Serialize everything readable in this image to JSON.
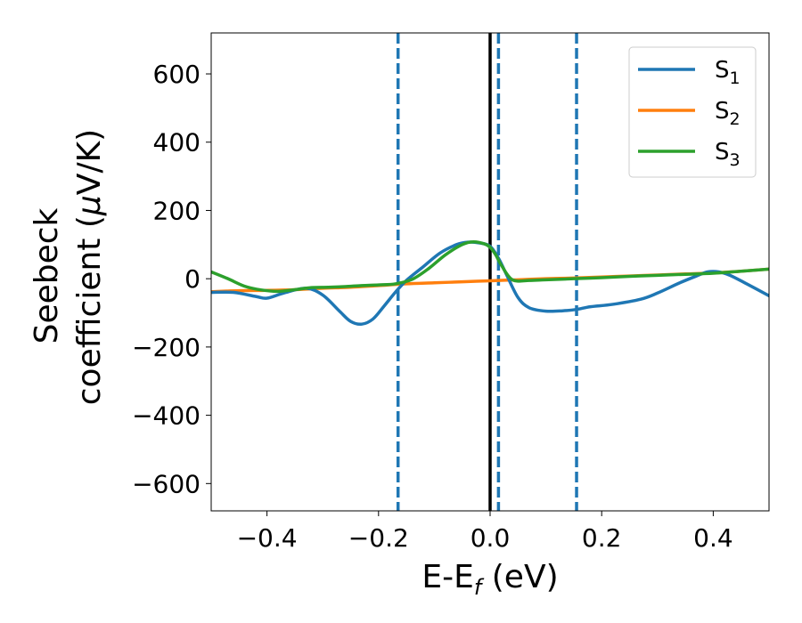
{
  "chart_data": {
    "type": "line",
    "xlabel": "E-E",
    "xlabel_sub": "f",
    "xlabel_unit": " (eV)",
    "ylabel_line1": "Seebeck",
    "ylabel_line2": "coefficient  (",
    "ylabel_mu": "μ",
    "ylabel_unit": "V/K)",
    "xlim": [
      -0.5,
      0.5
    ],
    "ylim": [
      -680,
      720
    ],
    "xticks": [
      -0.4,
      -0.2,
      0.0,
      0.2,
      0.4
    ],
    "xtick_labels": [
      "−0.4",
      "−0.2",
      "0.0",
      "0.2",
      "0.4"
    ],
    "yticks": [
      -600,
      -400,
      -200,
      0,
      200,
      400,
      600
    ],
    "ytick_labels": [
      "−600",
      "−400",
      "−200",
      "0",
      "200",
      "400",
      "600"
    ],
    "grid": false,
    "legend_position": "top-right",
    "vertical_lines": [
      {
        "x": -0.165,
        "style": "dashed",
        "color": "#1f77b4"
      },
      {
        "x": 0.0,
        "style": "solid",
        "color": "#000000"
      },
      {
        "x": 0.015,
        "style": "dashed",
        "color": "#1f77b4"
      },
      {
        "x": 0.155,
        "style": "dashed",
        "color": "#1f77b4"
      }
    ],
    "series": [
      {
        "name": "S",
        "name_sub": "1",
        "color": "#1f77b4",
        "x": [
          -0.5,
          -0.46,
          -0.42,
          -0.4,
          -0.37,
          -0.33,
          -0.3,
          -0.27,
          -0.25,
          -0.23,
          -0.21,
          -0.19,
          -0.17,
          -0.15,
          -0.12,
          -0.09,
          -0.06,
          -0.04,
          -0.02,
          0.0,
          0.015,
          0.03,
          0.05,
          0.07,
          0.1,
          0.13,
          0.155,
          0.18,
          0.22,
          0.27,
          0.3,
          0.34,
          0.37,
          0.39,
          0.41,
          0.43,
          0.46,
          0.5
        ],
        "y": [
          -40,
          -40,
          -52,
          -57,
          -42,
          -28,
          -48,
          -95,
          -125,
          -133,
          -118,
          -80,
          -40,
          -5,
          35,
          75,
          100,
          107,
          105,
          95,
          60,
          10,
          -55,
          -85,
          -95,
          -94,
          -90,
          -82,
          -75,
          -60,
          -42,
          -12,
          8,
          20,
          20,
          10,
          -15,
          -50
        ]
      },
      {
        "name": "S",
        "name_sub": "2",
        "color": "#ff7f0e",
        "x": [
          -0.5,
          -0.45,
          -0.4,
          -0.35,
          -0.3,
          -0.25,
          -0.2,
          -0.15,
          -0.1,
          -0.05,
          0.0,
          0.05,
          0.1,
          0.15,
          0.2,
          0.25,
          0.3,
          0.35,
          0.4,
          0.45,
          0.5
        ],
        "y": [
          -38,
          -35,
          -34,
          -32,
          -28,
          -25,
          -20,
          -15,
          -12,
          -9,
          -6,
          -3,
          0,
          2,
          5,
          8,
          11,
          14,
          17,
          22,
          28
        ]
      },
      {
        "name": "S",
        "name_sub": "3",
        "color": "#2ca02c",
        "x": [
          -0.5,
          -0.47,
          -0.44,
          -0.41,
          -0.38,
          -0.35,
          -0.32,
          -0.29,
          -0.26,
          -0.23,
          -0.2,
          -0.17,
          -0.14,
          -0.11,
          -0.08,
          -0.05,
          -0.03,
          -0.01,
          0.0,
          0.01,
          0.02,
          0.04,
          0.07,
          0.1,
          0.15,
          0.2,
          0.25,
          0.3,
          0.35,
          0.4,
          0.45,
          0.5
        ],
        "y": [
          20,
          0,
          -22,
          -33,
          -37,
          -32,
          -26,
          -25,
          -23,
          -20,
          -18,
          -15,
          -2,
          30,
          70,
          100,
          108,
          102,
          92,
          70,
          40,
          -3,
          -5,
          -3,
          0,
          3,
          7,
          10,
          13,
          16,
          22,
          28
        ]
      }
    ]
  }
}
